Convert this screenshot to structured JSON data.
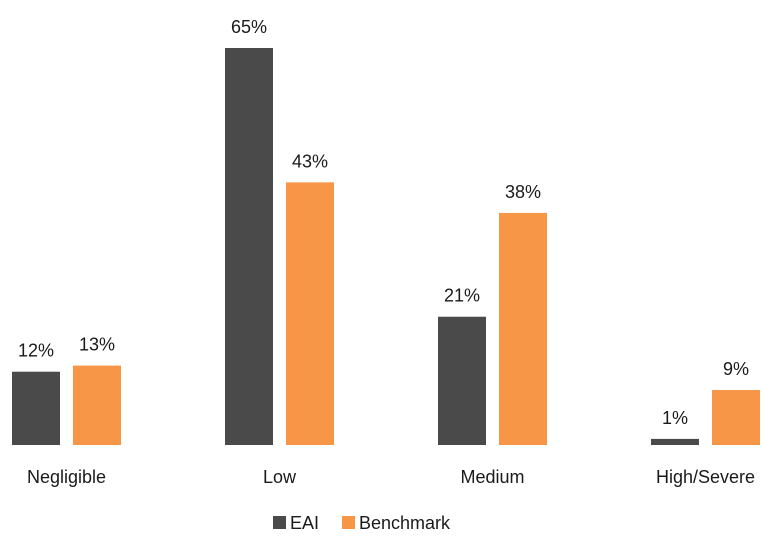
{
  "chart_data": {
    "type": "bar",
    "categories": [
      "Negligible",
      "Low",
      "Medium",
      "High/Severe"
    ],
    "series": [
      {
        "name": "EAI",
        "values": [
          12,
          65,
          21,
          1
        ],
        "labels": [
          "12%",
          "65%",
          "21%",
          "1%"
        ],
        "color": "#4a4a4a"
      },
      {
        "name": "Benchmark",
        "values": [
          13,
          43,
          38,
          9
        ],
        "labels": [
          "13%",
          "43%",
          "38%",
          "9%"
        ],
        "color": "#f79646"
      }
    ],
    "ylim": [
      0,
      65
    ],
    "legend_position": "bottom-center",
    "grid": false
  }
}
